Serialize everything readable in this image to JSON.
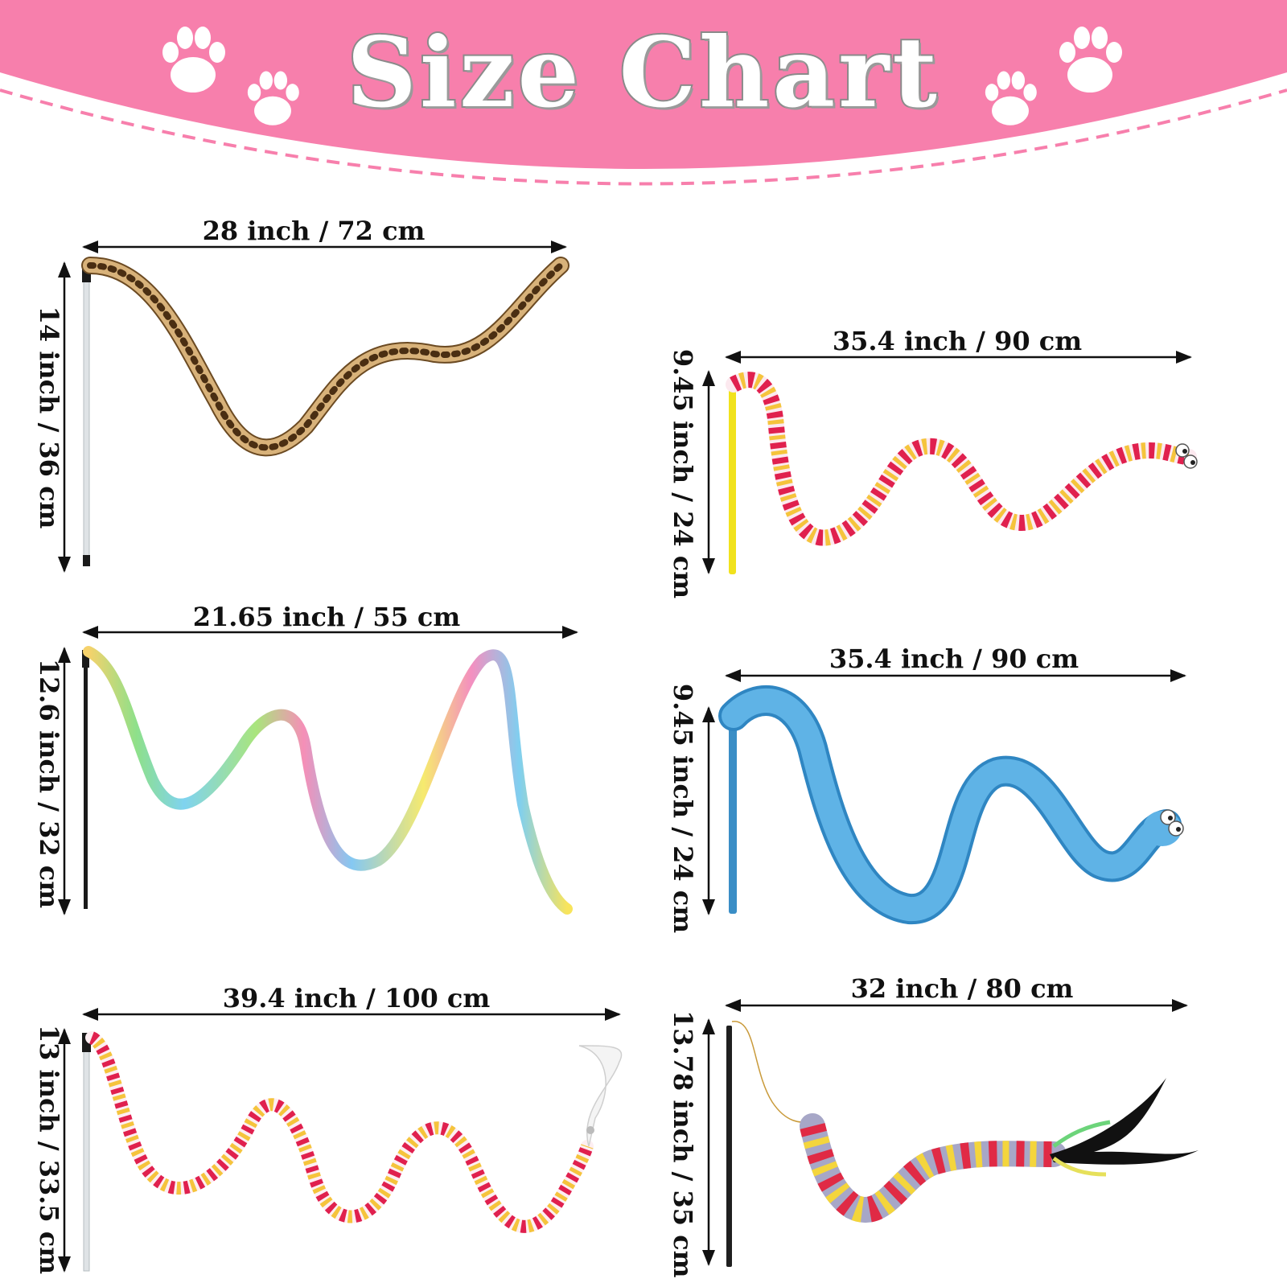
{
  "header": {
    "title": "Size Chart",
    "background_color": "#f77fac",
    "dash_color": "#f77fac"
  },
  "icons": [
    "paw-icon"
  ],
  "products": [
    {
      "name_visual": "leopard-wand",
      "width_label": "28 inch / 72 cm",
      "height_label": "14 inch / 36 cm"
    },
    {
      "name_visual": "striped-worm-wand",
      "width_label": "35.4 inch / 90 cm",
      "height_label": "9.45 inch / 24 cm"
    },
    {
      "name_visual": "rainbow-ribbon-wand",
      "width_label": "21.65 inch / 55 cm",
      "height_label": "12.6 inch / 32 cm"
    },
    {
      "name_visual": "blue-worm-wand",
      "width_label": "35.4 inch / 90 cm",
      "height_label": "9.45 inch / 24 cm"
    },
    {
      "name_visual": "striped-feather-wand",
      "width_label": "39.4 inch / 100 cm",
      "height_label": "13 inch / 33.5 cm"
    },
    {
      "name_visual": "caterpillar-feather-wand",
      "width_label": "32 inch / 80 cm",
      "height_label": "13.78 inch / 35 cm"
    }
  ]
}
